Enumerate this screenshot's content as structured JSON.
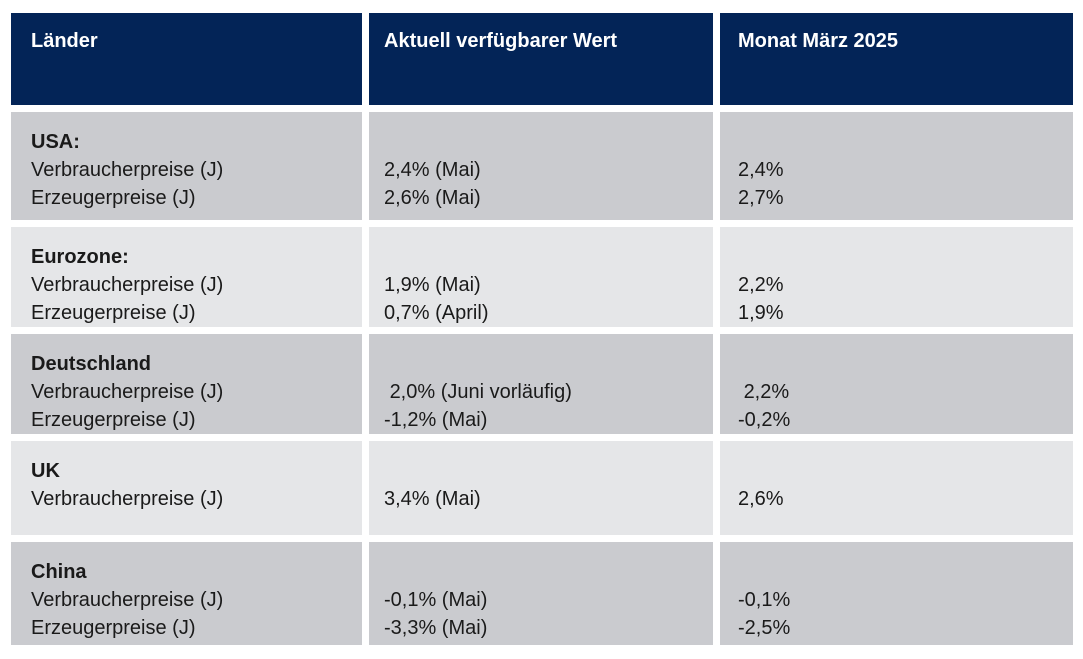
{
  "table": {
    "headers": {
      "country": "Länder",
      "current": "Aktuell verfügbarer Wert",
      "march": "Monat März 2025"
    },
    "rows": [
      {
        "name": "USA:",
        "indicators": "Verbraucherpreise (J)\nErzeugerpreise (J)",
        "current": "2,4% (Mai)\n2,6% (Mai)",
        "march": "2,4%\n2,7%"
      },
      {
        "name": "Eurozone:",
        "indicators": "Verbraucherpreise (J)\nErzeugerpreise (J)",
        "current": "1,9% (Mai)\n0,7% (April)",
        "march": "2,2%\n1,9%"
      },
      {
        "name": "Deutschland",
        "indicators": "Verbraucherpreise (J)\nErzeugerpreise (J)",
        "current": " 2,0% (Juni vorläufig)\n-1,2% (Mai)",
        "march": " 2,2%\n-0,2%"
      },
      {
        "name": "UK",
        "indicators": "Verbraucherpreise (J)",
        "current": "3,4% (Mai)",
        "march": "2,6%"
      },
      {
        "name": "China",
        "indicators": "Verbraucherpreise (J)\nErzeugerpreise (J)",
        "current": "-0,1% (Mai)\n-3,3% (Mai)",
        "march": "-0,1%\n-2,5%"
      }
    ],
    "colors": {
      "header_bg": "#032457",
      "header_text": "#ffffff",
      "row_dark": "#cacbcf",
      "row_light": "#e5e6e8",
      "body_text": "#1a1a1a",
      "gap": "#ffffff"
    }
  }
}
